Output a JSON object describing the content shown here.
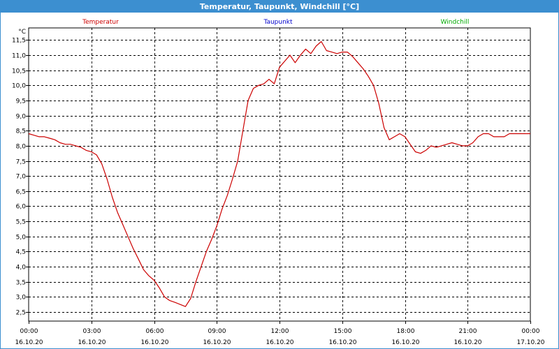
{
  "title": "Temperatur, Taupunkt, Windchill [°C]",
  "colors": {
    "titlebar": "#3c8fd0",
    "temperature": "#cc0000",
    "dewpoint": "#0000cc",
    "windchill": "#00aa00",
    "grid": "#000000"
  },
  "legend": [
    {
      "name": "Temperatur",
      "color": "#cc0000"
    },
    {
      "name": "Taupunkt",
      "color": "#0000cc"
    },
    {
      "name": "Windchill",
      "color": "#00aa00"
    }
  ],
  "chart_data": {
    "type": "line",
    "title": "Temperatur, Taupunkt, Windchill [°C]",
    "ylabel": "°C",
    "xlabel": "",
    "ylim": [
      2.2,
      11.9
    ],
    "xlim": [
      0,
      24
    ],
    "grid": true,
    "legend_position": "top",
    "y_ticks": [
      "2,5",
      "3,0",
      "3,5",
      "4,0",
      "4,5",
      "5,0",
      "5,5",
      "6,0",
      "6,5",
      "7,0",
      "7,5",
      "8,0",
      "8,5",
      "9,0",
      "9,5",
      "10,0",
      "10,5",
      "11,0",
      "11,5"
    ],
    "y_tick_values": [
      2.5,
      3.0,
      3.5,
      4.0,
      4.5,
      5.0,
      5.5,
      6.0,
      6.5,
      7.0,
      7.5,
      8.0,
      8.5,
      9.0,
      9.5,
      10.0,
      10.5,
      11.0,
      11.5
    ],
    "x_ticks": [
      {
        "value": 0,
        "time": "00:00",
        "date": "16.10.20"
      },
      {
        "value": 3,
        "time": "03:00",
        "date": "16.10.20"
      },
      {
        "value": 6,
        "time": "06:00",
        "date": "16.10.20"
      },
      {
        "value": 9,
        "time": "09:00",
        "date": "16.10.20"
      },
      {
        "value": 12,
        "time": "12:00",
        "date": "16.10.20"
      },
      {
        "value": 15,
        "time": "15:00",
        "date": "16.10.20"
      },
      {
        "value": 18,
        "time": "18:00",
        "date": "16.10.20"
      },
      {
        "value": 21,
        "time": "21:00",
        "date": "16.10.20"
      },
      {
        "value": 24,
        "time": "00:00",
        "date": "17.10.20"
      }
    ],
    "series": [
      {
        "name": "Temperatur",
        "x": [
          0.0,
          0.25,
          0.5,
          0.75,
          1.0,
          1.25,
          1.5,
          1.75,
          2.0,
          2.25,
          2.5,
          2.75,
          3.0,
          3.25,
          3.5,
          3.75,
          4.0,
          4.25,
          4.5,
          4.75,
          5.0,
          5.25,
          5.5,
          5.75,
          6.0,
          6.25,
          6.5,
          6.75,
          7.0,
          7.25,
          7.5,
          7.75,
          8.0,
          8.25,
          8.5,
          8.75,
          9.0,
          9.25,
          9.5,
          9.75,
          10.0,
          10.25,
          10.5,
          10.75,
          11.0,
          11.25,
          11.5,
          11.75,
          12.0,
          12.25,
          12.5,
          12.75,
          13.0,
          13.25,
          13.5,
          13.75,
          14.0,
          14.25,
          14.5,
          14.75,
          15.0,
          15.25,
          15.5,
          15.75,
          16.0,
          16.25,
          16.5,
          16.75,
          17.0,
          17.25,
          17.5,
          17.75,
          18.0,
          18.25,
          18.5,
          18.75,
          19.0,
          19.25,
          19.5,
          19.75,
          20.0,
          20.25,
          20.5,
          20.75,
          21.0,
          21.25,
          21.5,
          21.75,
          22.0,
          22.25,
          22.5,
          22.75,
          23.0,
          23.25,
          23.5,
          23.75,
          24.0
        ],
        "y": [
          8.4,
          8.35,
          8.3,
          8.3,
          8.25,
          8.2,
          8.1,
          8.05,
          8.05,
          8.0,
          7.95,
          7.85,
          7.8,
          7.7,
          7.4,
          6.9,
          6.3,
          5.8,
          5.4,
          5.0,
          4.6,
          4.25,
          3.9,
          3.7,
          3.55,
          3.3,
          3.0,
          2.88,
          2.82,
          2.75,
          2.68,
          2.95,
          3.5,
          4.0,
          4.5,
          4.9,
          5.35,
          5.9,
          6.35,
          6.9,
          7.5,
          8.5,
          9.5,
          9.9,
          10.0,
          10.05,
          10.2,
          10.05,
          10.6,
          10.8,
          11.0,
          10.75,
          11.0,
          11.2,
          11.05,
          11.3,
          11.45,
          11.15,
          11.1,
          11.05,
          11.1,
          11.1,
          10.95,
          10.75,
          10.55,
          10.3,
          10.0,
          9.4,
          8.6,
          8.2,
          8.3,
          8.4,
          8.3,
          8.05,
          7.8,
          7.75,
          7.85,
          8.0,
          7.95,
          8.0,
          8.05,
          8.1,
          8.05,
          8.0,
          8.0,
          8.1,
          8.3,
          8.4,
          8.4,
          8.3,
          8.3,
          8.3,
          8.4,
          8.4,
          8.4,
          8.4,
          8.4
        ]
      },
      {
        "name": "Taupunkt",
        "x": [],
        "y": []
      },
      {
        "name": "Windchill",
        "x": [],
        "y": []
      }
    ]
  }
}
